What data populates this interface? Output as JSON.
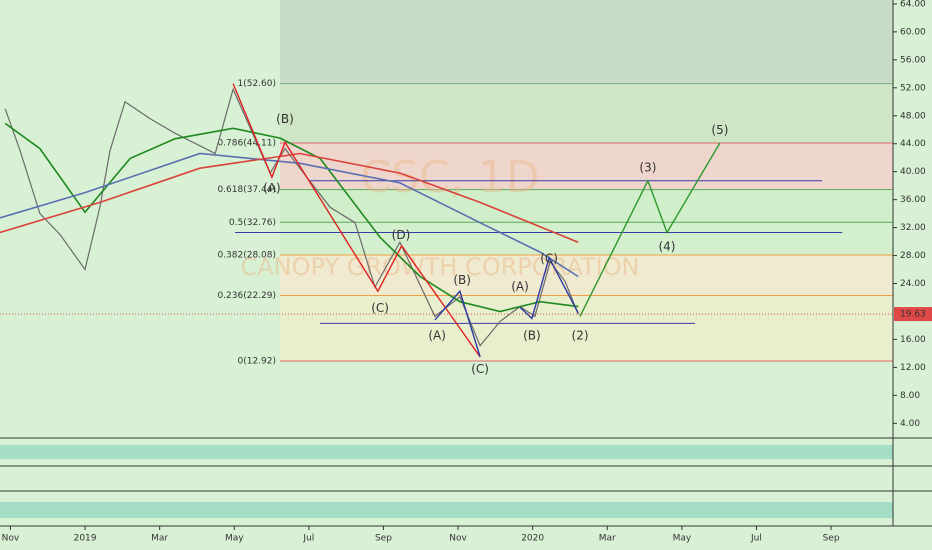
{
  "chart_data": {
    "type": "line",
    "watermark": "CSC, 1D",
    "watermark_subtitle": "CANOPY GROWTH CORPORATION",
    "last_price": {
      "value": 19.63,
      "label": "19.63"
    },
    "xlim": [
      -0.28,
      23.66
    ],
    "ylim": [
      1.9,
      64.56
    ],
    "xticks": [
      {
        "value": 0,
        "label": "Nov"
      },
      {
        "value": 2,
        "label": "2019"
      },
      {
        "value": 4,
        "label": "Mar"
      },
      {
        "value": 6,
        "label": "May"
      },
      {
        "value": 8,
        "label": "Jul"
      },
      {
        "value": 10,
        "label": "Sep"
      },
      {
        "value": 12,
        "label": "Nov"
      },
      {
        "value": 14,
        "label": "2020"
      },
      {
        "value": 16,
        "label": "Mar"
      },
      {
        "value": 18,
        "label": "May"
      },
      {
        "value": 20,
        "label": "Jul"
      },
      {
        "value": 22,
        "label": "Sep"
      }
    ],
    "yticks": [
      {
        "value": 64,
        "label": "64.00"
      },
      {
        "value": 60,
        "label": "60.00"
      },
      {
        "value": 56,
        "label": "56.00"
      },
      {
        "value": 52,
        "label": "52.00"
      },
      {
        "value": 48,
        "label": "48.00"
      },
      {
        "value": 44,
        "label": "44.00"
      },
      {
        "value": 40,
        "label": "40.00"
      },
      {
        "value": 36,
        "label": "36.00"
      },
      {
        "value": 32,
        "label": "32.00"
      },
      {
        "value": 28,
        "label": "28.00"
      },
      {
        "value": 24,
        "label": "24.00"
      },
      {
        "value": 16,
        "label": "16.00"
      },
      {
        "value": 12,
        "label": "12.00"
      },
      {
        "value": 8,
        "label": "8.00"
      },
      {
        "value": 4,
        "label": "4.00"
      }
    ],
    "series": [
      {
        "name": "Price",
        "color": "#6b6b6b",
        "x": [
          -0.14,
          0.26,
          0.79,
          1.33,
          2,
          2.4,
          2.67,
          3.07,
          3.74,
          4.41,
          5.49,
          5.97,
          6.96,
          7.36,
          7.76,
          8.57,
          9.24,
          9.77,
          10.44,
          11.38,
          12.05,
          12.59,
          13.13,
          13.66,
          14.06,
          14.47,
          14.87,
          15.22
        ],
        "values": [
          49,
          43,
          34,
          31,
          26,
          35,
          43,
          50,
          47.6,
          45.5,
          42.6,
          51.8,
          39.8,
          43.3,
          40.5,
          34.9,
          32.7,
          23.5,
          29.9,
          19.3,
          22.1,
          15.1,
          18.6,
          20.7,
          19.3,
          27.1,
          24.3,
          19.6
        ]
      },
      {
        "name": "MA fast",
        "color": "#1f8a1f",
        "x": [
          -0.14,
          0.79,
          2,
          3.21,
          4.41,
          5.97,
          7.23,
          8.3,
          9.91,
          10.98,
          12.05,
          13.13,
          14.2,
          15.22
        ],
        "values": [
          46.9,
          43.3,
          34.2,
          41.9,
          44.7,
          46.2,
          44.8,
          41.9,
          30.6,
          25,
          21.4,
          20,
          21.4,
          20.7
        ]
      },
      {
        "name": "MA mid",
        "color": "#5a6fb0",
        "x": [
          -0.28,
          2,
          5.08,
          7.76,
          10.44,
          12.59,
          14.2,
          15.22
        ],
        "values": [
          33.4,
          37,
          42.6,
          41.2,
          38.4,
          32.7,
          28.5,
          25
        ]
      },
      {
        "name": "MA slow",
        "color": "#d9423a",
        "x": [
          -0.28,
          2.4,
          5.08,
          7.76,
          10.44,
          12.59,
          15.22
        ],
        "values": [
          31.3,
          35.6,
          40.5,
          42.6,
          39.8,
          35.6,
          29.9
        ]
      }
    ],
    "fib_levels": [
      {
        "value": 52.6,
        "label": "1(52.60)",
        "color": "#7fb07f",
        "fill": "#cfe6c6"
      },
      {
        "value": 44.11,
        "label": "0.786(44.11)",
        "color": "#e06666",
        "fill": "#efd6cc"
      },
      {
        "value": 37.44,
        "label": "0.618(37.44)",
        "color": "#5aaa5a",
        "fill": "#cfeec9"
      },
      {
        "value": 32.76,
        "label": "0.5(32.76)",
        "color": "#5aaa5a",
        "fill": "#d3efcd"
      },
      {
        "value": 28.08,
        "label": "0.382(28.08)",
        "color": "#f0a040",
        "fill": "#f0ead0"
      },
      {
        "value": 22.29,
        "label": "0.236(22.29)",
        "color": "#f0a040",
        "fill": "#e9eecd"
      },
      {
        "value": 12.92,
        "label": "0(12.92)",
        "color": "#e06666"
      }
    ],
    "hlines": [
      {
        "value": 38.7,
        "x": [
          8.03,
          21.76
        ],
        "color": "#3a3aa8"
      },
      {
        "value": 31.3,
        "x": [
          6.02,
          22.3
        ],
        "color": "#3a3aa8"
      },
      {
        "value": 18.3,
        "x": [
          8.3,
          18.35
        ],
        "color": "#3a3aa8"
      }
    ],
    "waves": [
      {
        "color": "#e02020",
        "x": [
          5.97,
          7.01,
          7.36,
          9.85,
          10.49,
          12.59
        ],
        "y": [
          52.6,
          39.2,
          44.2,
          22.9,
          29.4,
          13.5
        ]
      },
      {
        "color": "#2b3aa0",
        "x": [
          11.38,
          12.05,
          12.59
        ],
        "y": [
          18.8,
          22.9,
          13.5
        ]
      },
      {
        "color": "#2b3aa0",
        "x": [
          13.66,
          13.98,
          14.44,
          15.22
        ],
        "y": [
          20.6,
          19,
          27.7,
          19.8
        ]
      },
      {
        "color": "#2e9a2e",
        "x": [
          15.27,
          17.09,
          17.6,
          19.02
        ],
        "y": [
          19.3,
          38.7,
          31.3,
          44.1
        ]
      }
    ],
    "annotations": [
      {
        "text": "(A)",
        "x": 7.01,
        "y": 37.6,
        "color": "#b01818"
      },
      {
        "text": "(B)",
        "x": 7.36,
        "y": 47.5,
        "color": "#b01818"
      },
      {
        "text": "(C)",
        "x": 9.91,
        "y": 20.4,
        "color": "#b01818"
      },
      {
        "text": "(D)",
        "x": 10.47,
        "y": 30.9,
        "color": "#b01818"
      },
      {
        "text": "(A)",
        "x": 11.44,
        "y": 16.5,
        "color": "#22308a"
      },
      {
        "text": "(B)",
        "x": 12.11,
        "y": 24.4,
        "color": "#22308a"
      },
      {
        "text": "(C)",
        "x": 12.59,
        "y": 11.7,
        "color": "#333333"
      },
      {
        "text": "(A)",
        "x": 13.66,
        "y": 23.5,
        "color": "#22308a"
      },
      {
        "text": "(B)",
        "x": 13.98,
        "y": 16.5,
        "color": "#22308a"
      },
      {
        "text": "(C)",
        "x": 14.44,
        "y": 27.5,
        "color": "#22308a"
      },
      {
        "text": "(2)",
        "x": 15.27,
        "y": 16.5,
        "color": "#333333"
      },
      {
        "text": "(3)",
        "x": 17.09,
        "y": 40.5,
        "color": "#333333"
      },
      {
        "text": "(4)",
        "x": 17.6,
        "y": 29.2,
        "color": "#333333"
      },
      {
        "text": "(5)",
        "x": 19.02,
        "y": 45.9,
        "color": "#333333"
      }
    ]
  }
}
